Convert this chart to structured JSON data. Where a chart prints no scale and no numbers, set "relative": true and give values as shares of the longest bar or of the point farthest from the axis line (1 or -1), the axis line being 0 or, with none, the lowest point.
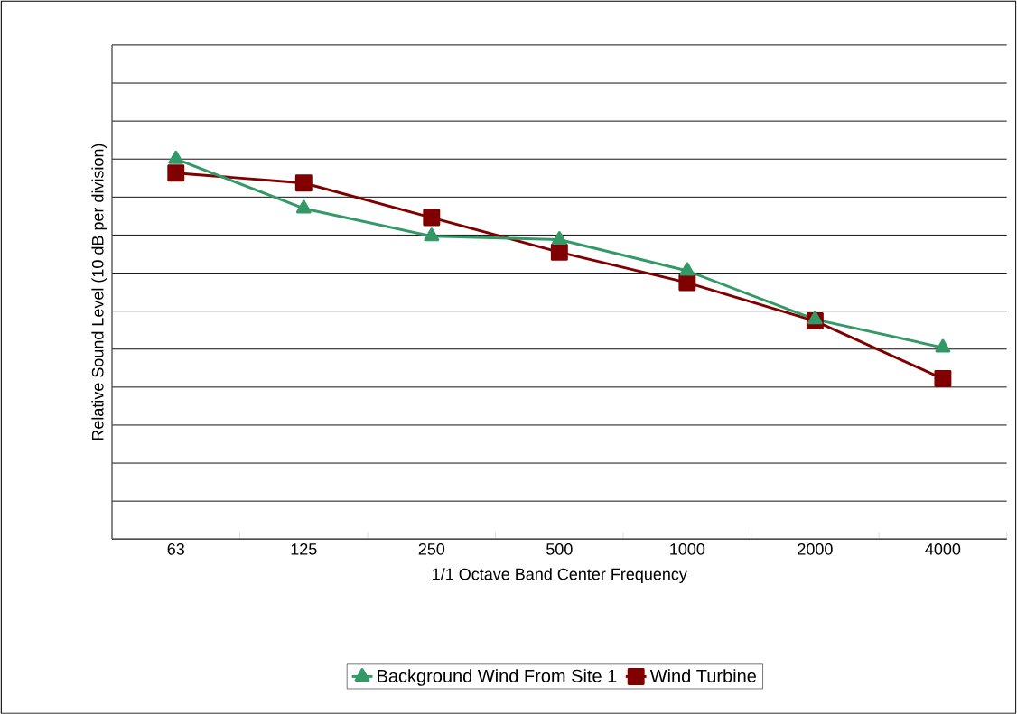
{
  "chart_data": {
    "type": "line",
    "relative": true,
    "xlabel": "1/1 Octave Band Center Frequency",
    "ylabel": "Relative Sound Level (10 dB per division)",
    "categories": [
      "63",
      "125",
      "250",
      "500",
      "1000",
      "2000",
      "4000"
    ],
    "series": [
      {
        "name": "Background Wind From Site 1",
        "color": "#339966",
        "marker": "triangle",
        "values": [
          1,
          0.87,
          0.797,
          0.788,
          0.706,
          0.578,
          0.504
        ]
      },
      {
        "name": "Wind Turbine",
        "color": "#800000",
        "marker": "square",
        "values": [
          0.963,
          0.937,
          0.846,
          0.755,
          0.675,
          0.574,
          0.422
        ]
      }
    ],
    "grid": "y",
    "legend": "bottom",
    "line_style": "solid"
  }
}
